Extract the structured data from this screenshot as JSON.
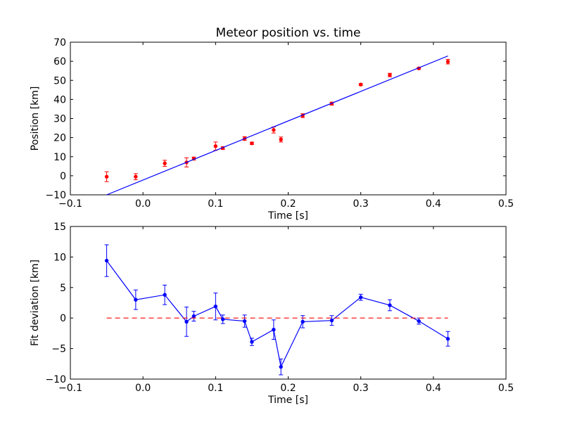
{
  "chart_data": [
    {
      "type": "scatter",
      "title": "Meteor position vs. time",
      "xlabel": "Time [s]",
      "ylabel": "Position [km]",
      "xlim": [
        -0.1,
        0.5
      ],
      "ylim": [
        -10,
        70
      ],
      "xticks": [
        "−0.1",
        "0.0",
        "0.1",
        "0.2",
        "0.3",
        "0.4",
        "0.5"
      ],
      "yticks": [
        "−10",
        "0",
        "10",
        "20",
        "30",
        "40",
        "50",
        "60",
        "70"
      ],
      "grid": false,
      "colors": {
        "points": "#ff0000",
        "fit": "#0000ff"
      },
      "series": [
        {
          "style": "points-with-errorbars",
          "x": [
            -0.05,
            -0.01,
            0.03,
            0.06,
            0.07,
            0.1,
            0.11,
            0.14,
            0.15,
            0.18,
            0.19,
            0.22,
            0.26,
            0.3,
            0.34,
            0.38,
            0.42
          ],
          "y": [
            -0.5,
            -0.5,
            6.5,
            7.0,
            9.0,
            15.5,
            14.5,
            19.5,
            17.0,
            24.0,
            19.0,
            31.5,
            37.8,
            47.8,
            52.8,
            56.3,
            59.8
          ],
          "yerr": [
            2.6,
            1.6,
            1.6,
            2.4,
            0.8,
            2.2,
            0.7,
            1.0,
            0.6,
            1.6,
            1.3,
            1.0,
            0.8,
            0.5,
            0.9,
            0.5,
            1.2
          ]
        },
        {
          "style": "line",
          "x": [
            -0.05,
            0.42
          ],
          "y": [
            -10,
            62.8
          ]
        }
      ]
    },
    {
      "type": "line",
      "xlabel": "Time [s]",
      "ylabel": "Fit deviation [km]",
      "xlim": [
        -0.1,
        0.5
      ],
      "ylim": [
        -10,
        15
      ],
      "xticks": [
        "−0.1",
        "0.0",
        "0.1",
        "0.2",
        "0.3",
        "0.4",
        "0.5"
      ],
      "yticks": [
        "−10",
        "−5",
        "0",
        "5",
        "10",
        "15"
      ],
      "grid": false,
      "colors": {
        "deviation": "#0000ff",
        "zero": "#ff0000"
      },
      "series": [
        {
          "style": "line-with-errorbars",
          "x": [
            -0.05,
            -0.01,
            0.03,
            0.06,
            0.07,
            0.1,
            0.11,
            0.14,
            0.15,
            0.18,
            0.19,
            0.22,
            0.26,
            0.3,
            0.34,
            0.38,
            0.42
          ],
          "y": [
            9.4,
            3.0,
            3.8,
            -0.6,
            0.3,
            1.9,
            -0.2,
            -0.5,
            -3.9,
            -1.9,
            -8.0,
            -0.6,
            -0.4,
            3.4,
            2.1,
            -0.5,
            -3.4
          ],
          "yerr": [
            2.6,
            1.6,
            1.6,
            2.4,
            0.8,
            2.2,
            0.7,
            1.0,
            0.6,
            1.6,
            1.3,
            1.0,
            0.8,
            0.5,
            0.9,
            0.5,
            1.2
          ]
        },
        {
          "style": "dashed-line",
          "x": [
            -0.05,
            0.42
          ],
          "y": [
            0,
            0
          ]
        }
      ]
    }
  ]
}
